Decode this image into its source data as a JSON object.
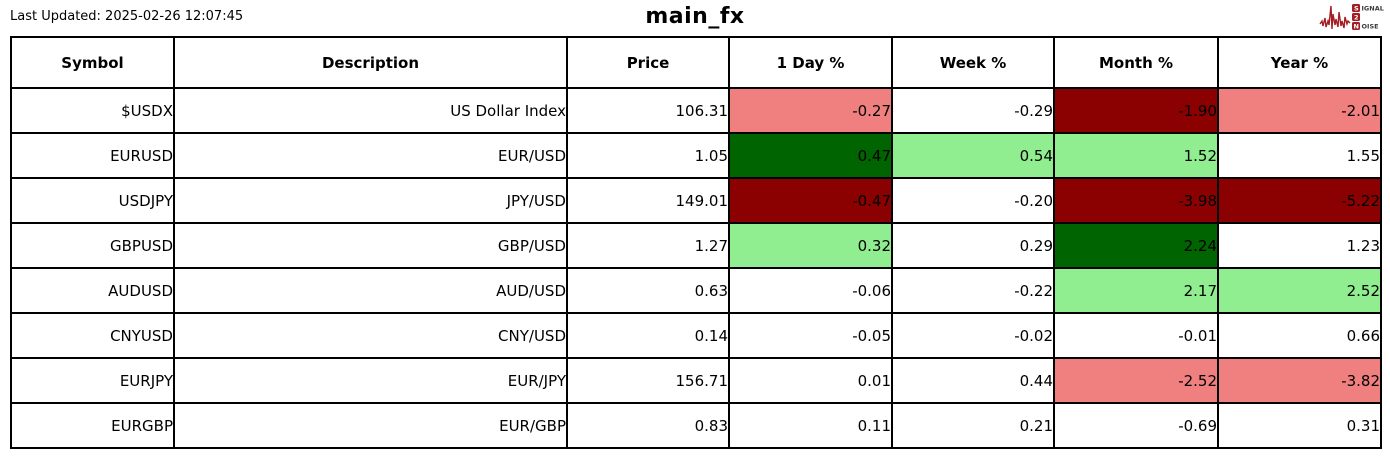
{
  "page": {
    "last_updated": "Last Updated: 2025-02-26 12:07:45",
    "title": "main_fx"
  },
  "logo": {
    "name": "signal-2-noise",
    "accent_color": "#a51d24",
    "line1_initial": "S",
    "line1_rest": "IGNAL",
    "line2_initial": "2",
    "line3_initial": "N",
    "line3_rest": "OISE"
  },
  "colors": {
    "strong_positive_bg": "#006400",
    "mild_positive_bg": "#90EE90",
    "strong_negative_bg": "#8B0000",
    "mild_negative_bg": "#F08080",
    "neutral_bg": "#FFFFFF",
    "border": "#000000",
    "text": "#000000"
  },
  "table": {
    "columns": [
      "Symbol",
      "Description",
      "Price",
      "1 Day %",
      "Week %",
      "Month %",
      "Year %"
    ],
    "rows": [
      {
        "symbol": "$USDX",
        "description": "US Dollar Index",
        "price": "106.31",
        "changes": [
          {
            "text": "-0.27",
            "bg": "#F08080"
          },
          {
            "text": "-0.29",
            "bg": "#FFFFFF"
          },
          {
            "text": "-1.90",
            "bg": "#8B0000"
          },
          {
            "text": "-2.01",
            "bg": "#F08080"
          }
        ]
      },
      {
        "symbol": "EURUSD",
        "description": "EUR/USD",
        "price": "1.05",
        "changes": [
          {
            "text": "0.47",
            "bg": "#006400"
          },
          {
            "text": "0.54",
            "bg": "#90EE90"
          },
          {
            "text": "1.52",
            "bg": "#90EE90"
          },
          {
            "text": "1.55",
            "bg": "#FFFFFF"
          }
        ]
      },
      {
        "symbol": "USDJPY",
        "description": "JPY/USD",
        "price": "149.01",
        "changes": [
          {
            "text": "-0.47",
            "bg": "#8B0000"
          },
          {
            "text": "-0.20",
            "bg": "#FFFFFF"
          },
          {
            "text": "-3.98",
            "bg": "#8B0000"
          },
          {
            "text": "-5.22",
            "bg": "#8B0000"
          }
        ]
      },
      {
        "symbol": "GBPUSD",
        "description": "GBP/USD",
        "price": "1.27",
        "changes": [
          {
            "text": "0.32",
            "bg": "#90EE90"
          },
          {
            "text": "0.29",
            "bg": "#FFFFFF"
          },
          {
            "text": "2.24",
            "bg": "#006400"
          },
          {
            "text": "1.23",
            "bg": "#FFFFFF"
          }
        ]
      },
      {
        "symbol": "AUDUSD",
        "description": "AUD/USD",
        "price": "0.63",
        "changes": [
          {
            "text": "-0.06",
            "bg": "#FFFFFF"
          },
          {
            "text": "-0.22",
            "bg": "#FFFFFF"
          },
          {
            "text": "2.17",
            "bg": "#90EE90"
          },
          {
            "text": "2.52",
            "bg": "#90EE90"
          }
        ]
      },
      {
        "symbol": "CNYUSD",
        "description": "CNY/USD",
        "price": "0.14",
        "changes": [
          {
            "text": "-0.05",
            "bg": "#FFFFFF"
          },
          {
            "text": "-0.02",
            "bg": "#FFFFFF"
          },
          {
            "text": "-0.01",
            "bg": "#FFFFFF"
          },
          {
            "text": "0.66",
            "bg": "#FFFFFF"
          }
        ]
      },
      {
        "symbol": "EURJPY",
        "description": "EUR/JPY",
        "price": "156.71",
        "changes": [
          {
            "text": "0.01",
            "bg": "#FFFFFF"
          },
          {
            "text": "0.44",
            "bg": "#FFFFFF"
          },
          {
            "text": "-2.52",
            "bg": "#F08080"
          },
          {
            "text": "-3.82",
            "bg": "#F08080"
          }
        ]
      },
      {
        "symbol": "EURGBP",
        "description": "EUR/GBP",
        "price": "0.83",
        "changes": [
          {
            "text": "0.11",
            "bg": "#FFFFFF"
          },
          {
            "text": "0.21",
            "bg": "#FFFFFF"
          },
          {
            "text": "-0.69",
            "bg": "#FFFFFF"
          },
          {
            "text": "0.31",
            "bg": "#FFFFFF"
          }
        ]
      }
    ]
  },
  "chart_data": {
    "type": "table",
    "title": "main_fx",
    "last_updated": "2025-02-26 12:07:45",
    "columns": [
      "Symbol",
      "Description",
      "Price",
      "1 Day %",
      "Week %",
      "Month %",
      "Year %"
    ],
    "rows": [
      [
        "$USDX",
        "US Dollar Index",
        106.31,
        -0.27,
        -0.29,
        -1.9,
        -2.01
      ],
      [
        "EURUSD",
        "EUR/USD",
        1.05,
        0.47,
        0.54,
        1.52,
        1.55
      ],
      [
        "USDJPY",
        "JPY/USD",
        149.01,
        -0.47,
        -0.2,
        -3.98,
        -5.22
      ],
      [
        "GBPUSD",
        "GBP/USD",
        1.27,
        0.32,
        0.29,
        2.24,
        1.23
      ],
      [
        "AUDUSD",
        "AUD/USD",
        0.63,
        -0.06,
        -0.22,
        2.17,
        2.52
      ],
      [
        "CNYUSD",
        "CNY/USD",
        0.14,
        -0.05,
        -0.02,
        -0.01,
        0.66
      ],
      [
        "EURJPY",
        "EUR/JPY",
        156.71,
        0.01,
        0.44,
        -2.52,
        -3.82
      ],
      [
        "EURGBP",
        "EUR/GBP",
        0.83,
        0.11,
        0.21,
        -0.69,
        0.31
      ]
    ],
    "cell_color_legend": {
      "#006400": "strong gain",
      "#90EE90": "mild gain",
      "#8B0000": "strong loss",
      "#F08080": "mild loss",
      "#FFFFFF": "neutral"
    }
  }
}
